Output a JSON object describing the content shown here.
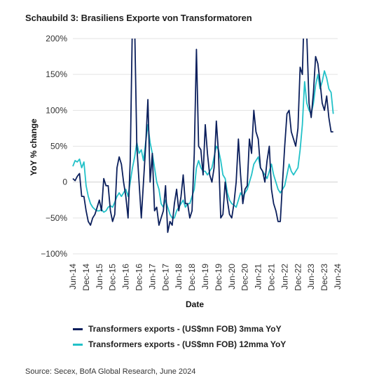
{
  "figure_title": "Schaubild 3: Brasiliens Exporte von Transformatoren",
  "source": "Source: Secex, BofA Global Research, June 2024",
  "colors": {
    "series_3mma": "#0b1f5c",
    "series_12mma": "#22c1c8",
    "grid": "#e3e3e3",
    "axis": "#bbbbbb"
  },
  "chart_data": {
    "type": "line",
    "xlabel": "Date",
    "ylabel": "YoY % change",
    "ylim": [
      -100,
      200
    ],
    "y_ticks": [
      -100,
      -50,
      0,
      50,
      100,
      150,
      200
    ],
    "y_tick_labels": [
      "−100%",
      "−50%",
      "0",
      "50%",
      "100%",
      "150%",
      "200%"
    ],
    "x_range": [
      "2014-06",
      "2024-06"
    ],
    "x_tick_labels": [
      "Jun-14",
      "Dec-14",
      "Jun-15",
      "Dec-15",
      "Jun-16",
      "Dec-16",
      "Jun-17",
      "Dec-17",
      "Jun-18",
      "Dec-18",
      "Jun-19",
      "Dec-19",
      "Jun-20",
      "Dec-20",
      "Jun-21",
      "Dec-21",
      "Jun-22",
      "Dec-22",
      "Jun-23",
      "Dec-23",
      "Jun-24"
    ],
    "grid": "horizontal",
    "legend_position": "bottom",
    "series": [
      {
        "name": "Transformers exports - (US$mn FOB) 3mma YoY",
        "color": "#0b1f5c",
        "points": [
          [
            "2014-06",
            5
          ],
          [
            "2014-07",
            2
          ],
          [
            "2014-08",
            8
          ],
          [
            "2014-09",
            12
          ],
          [
            "2014-10",
            -20
          ],
          [
            "2014-11",
            -20
          ],
          [
            "2014-12",
            -40
          ],
          [
            "2015-01",
            -55
          ],
          [
            "2015-02",
            -60
          ],
          [
            "2015-03",
            -50
          ],
          [
            "2015-04",
            -45
          ],
          [
            "2015-05",
            -35
          ],
          [
            "2015-06",
            -25
          ],
          [
            "2015-07",
            -40
          ],
          [
            "2015-08",
            5
          ],
          [
            "2015-09",
            -5
          ],
          [
            "2015-10",
            -5
          ],
          [
            "2015-11",
            -40
          ],
          [
            "2015-12",
            -55
          ],
          [
            "2016-01",
            -45
          ],
          [
            "2016-02",
            20
          ],
          [
            "2016-03",
            35
          ],
          [
            "2016-04",
            25
          ],
          [
            "2016-05",
            0
          ],
          [
            "2016-06",
            -20
          ],
          [
            "2016-07",
            -50
          ],
          [
            "2016-08",
            30
          ],
          [
            "2016-09",
            230
          ],
          [
            "2016-10",
            220
          ],
          [
            "2016-11",
            50
          ],
          [
            "2016-12",
            0
          ],
          [
            "2017-01",
            -50
          ],
          [
            "2017-02",
            0
          ],
          [
            "2017-03",
            50
          ],
          [
            "2017-04",
            115
          ],
          [
            "2017-05",
            0
          ],
          [
            "2017-06",
            40
          ],
          [
            "2017-07",
            -40
          ],
          [
            "2017-08",
            -35
          ],
          [
            "2017-09",
            -60
          ],
          [
            "2017-10",
            -50
          ],
          [
            "2017-11",
            -40
          ],
          [
            "2017-12",
            -5
          ],
          [
            "2018-01",
            -70
          ],
          [
            "2018-02",
            -55
          ],
          [
            "2018-03",
            -60
          ],
          [
            "2018-04",
            -30
          ],
          [
            "2018-05",
            -10
          ],
          [
            "2018-06",
            -40
          ],
          [
            "2018-07",
            -20
          ],
          [
            "2018-08",
            10
          ],
          [
            "2018-09",
            -30
          ],
          [
            "2018-10",
            -30
          ],
          [
            "2018-11",
            -50
          ],
          [
            "2018-12",
            -40
          ],
          [
            "2019-01",
            40
          ],
          [
            "2019-02",
            185
          ],
          [
            "2019-03",
            50
          ],
          [
            "2019-04",
            45
          ],
          [
            "2019-05",
            10
          ],
          [
            "2019-06",
            80
          ],
          [
            "2019-07",
            40
          ],
          [
            "2019-08",
            10
          ],
          [
            "2019-09",
            0
          ],
          [
            "2019-10",
            20
          ],
          [
            "2019-11",
            85
          ],
          [
            "2019-12",
            40
          ],
          [
            "2020-01",
            -50
          ],
          [
            "2020-02",
            -45
          ],
          [
            "2020-03",
            0
          ],
          [
            "2020-04",
            -25
          ],
          [
            "2020-05",
            -45
          ],
          [
            "2020-06",
            -50
          ],
          [
            "2020-07",
            -30
          ],
          [
            "2020-08",
            0
          ],
          [
            "2020-09",
            60
          ],
          [
            "2020-10",
            10
          ],
          [
            "2020-11",
            -30
          ],
          [
            "2020-12",
            -10
          ],
          [
            "2021-01",
            -5
          ],
          [
            "2021-02",
            60
          ],
          [
            "2021-03",
            40
          ],
          [
            "2021-04",
            100
          ],
          [
            "2021-05",
            70
          ],
          [
            "2021-06",
            60
          ],
          [
            "2021-07",
            20
          ],
          [
            "2021-08",
            15
          ],
          [
            "2021-09",
            0
          ],
          [
            "2021-10",
            30
          ],
          [
            "2021-11",
            50
          ],
          [
            "2021-12",
            -10
          ],
          [
            "2022-01",
            -30
          ],
          [
            "2022-02",
            -40
          ],
          [
            "2022-03",
            -55
          ],
          [
            "2022-04",
            -55
          ],
          [
            "2022-05",
            0
          ],
          [
            "2022-06",
            50
          ],
          [
            "2022-07",
            95
          ],
          [
            "2022-08",
            100
          ],
          [
            "2022-09",
            70
          ],
          [
            "2022-10",
            60
          ],
          [
            "2022-11",
            50
          ],
          [
            "2022-12",
            75
          ],
          [
            "2023-01",
            160
          ],
          [
            "2023-02",
            150
          ],
          [
            "2023-03",
            260
          ],
          [
            "2023-04",
            205
          ],
          [
            "2023-05",
            110
          ],
          [
            "2023-06",
            90
          ],
          [
            "2023-07",
            125
          ],
          [
            "2023-08",
            175
          ],
          [
            "2023-09",
            165
          ],
          [
            "2023-10",
            140
          ],
          [
            "2023-11",
            110
          ],
          [
            "2023-12",
            100
          ],
          [
            "2024-01",
            120
          ],
          [
            "2024-02",
            90
          ],
          [
            "2024-03",
            70
          ],
          [
            "2024-04",
            70
          ]
        ]
      },
      {
        "name": "Transformers exports - (US$mn FOB) 12mma YoY",
        "color": "#22c1c8",
        "points": [
          [
            "2014-06",
            22
          ],
          [
            "2014-07",
            30
          ],
          [
            "2014-08",
            28
          ],
          [
            "2014-09",
            32
          ],
          [
            "2014-10",
            20
          ],
          [
            "2014-11",
            28
          ],
          [
            "2014-12",
            -5
          ],
          [
            "2015-01",
            -20
          ],
          [
            "2015-02",
            -30
          ],
          [
            "2015-03",
            -35
          ],
          [
            "2015-04",
            -38
          ],
          [
            "2015-05",
            -40
          ],
          [
            "2015-06",
            -40
          ],
          [
            "2015-07",
            -38
          ],
          [
            "2015-08",
            -42
          ],
          [
            "2015-09",
            -40
          ],
          [
            "2015-10",
            -35
          ],
          [
            "2015-11",
            -33
          ],
          [
            "2015-12",
            -35
          ],
          [
            "2016-01",
            -28
          ],
          [
            "2016-02",
            -20
          ],
          [
            "2016-03",
            -15
          ],
          [
            "2016-04",
            -20
          ],
          [
            "2016-05",
            -15
          ],
          [
            "2016-06",
            -10
          ],
          [
            "2016-07",
            -20
          ],
          [
            "2016-08",
            0
          ],
          [
            "2016-09",
            20
          ],
          [
            "2016-10",
            35
          ],
          [
            "2016-11",
            55
          ],
          [
            "2016-12",
            40
          ],
          [
            "2017-01",
            45
          ],
          [
            "2017-02",
            30
          ],
          [
            "2017-03",
            55
          ],
          [
            "2017-04",
            80
          ],
          [
            "2017-05",
            55
          ],
          [
            "2017-06",
            40
          ],
          [
            "2017-07",
            20
          ],
          [
            "2017-08",
            0
          ],
          [
            "2017-09",
            -10
          ],
          [
            "2017-10",
            -30
          ],
          [
            "2017-11",
            -35
          ],
          [
            "2017-12",
            -25
          ],
          [
            "2018-01",
            -35
          ],
          [
            "2018-02",
            -45
          ],
          [
            "2018-03",
            -50
          ],
          [
            "2018-04",
            -50
          ],
          [
            "2018-05",
            -40
          ],
          [
            "2018-06",
            -35
          ],
          [
            "2018-07",
            -30
          ],
          [
            "2018-08",
            -25
          ],
          [
            "2018-09",
            -35
          ],
          [
            "2018-10",
            -30
          ],
          [
            "2018-11",
            -30
          ],
          [
            "2018-12",
            -20
          ],
          [
            "2019-01",
            -10
          ],
          [
            "2019-02",
            20
          ],
          [
            "2019-03",
            30
          ],
          [
            "2019-04",
            20
          ],
          [
            "2019-05",
            15
          ],
          [
            "2019-06",
            15
          ],
          [
            "2019-07",
            10
          ],
          [
            "2019-08",
            15
          ],
          [
            "2019-09",
            20
          ],
          [
            "2019-10",
            35
          ],
          [
            "2019-11",
            50
          ],
          [
            "2019-12",
            45
          ],
          [
            "2020-01",
            30
          ],
          [
            "2020-02",
            10
          ],
          [
            "2020-03",
            5
          ],
          [
            "2020-04",
            -15
          ],
          [
            "2020-05",
            -25
          ],
          [
            "2020-06",
            -30
          ],
          [
            "2020-07",
            -32
          ],
          [
            "2020-08",
            -35
          ],
          [
            "2020-09",
            -25
          ],
          [
            "2020-10",
            -15
          ],
          [
            "2020-11",
            -20
          ],
          [
            "2020-12",
            -15
          ],
          [
            "2021-01",
            -10
          ],
          [
            "2021-02",
            0
          ],
          [
            "2021-03",
            10
          ],
          [
            "2021-04",
            25
          ],
          [
            "2021-05",
            30
          ],
          [
            "2021-06",
            35
          ],
          [
            "2021-07",
            20
          ],
          [
            "2021-08",
            15
          ],
          [
            "2021-09",
            10
          ],
          [
            "2021-10",
            5
          ],
          [
            "2021-11",
            15
          ],
          [
            "2021-12",
            25
          ],
          [
            "2022-01",
            10
          ],
          [
            "2022-02",
            0
          ],
          [
            "2022-03",
            -10
          ],
          [
            "2022-04",
            -15
          ],
          [
            "2022-05",
            -10
          ],
          [
            "2022-06",
            -5
          ],
          [
            "2022-07",
            10
          ],
          [
            "2022-08",
            25
          ],
          [
            "2022-09",
            15
          ],
          [
            "2022-10",
            10
          ],
          [
            "2022-11",
            15
          ],
          [
            "2022-12",
            20
          ],
          [
            "2023-01",
            45
          ],
          [
            "2023-02",
            80
          ],
          [
            "2023-03",
            140
          ],
          [
            "2023-04",
            110
          ],
          [
            "2023-05",
            100
          ],
          [
            "2023-06",
            95
          ],
          [
            "2023-07",
            110
          ],
          [
            "2023-08",
            135
          ],
          [
            "2023-09",
            150
          ],
          [
            "2023-10",
            130
          ],
          [
            "2023-11",
            140
          ],
          [
            "2023-12",
            155
          ],
          [
            "2024-01",
            145
          ],
          [
            "2024-02",
            130
          ],
          [
            "2024-03",
            125
          ],
          [
            "2024-04",
            95
          ]
        ]
      }
    ]
  }
}
